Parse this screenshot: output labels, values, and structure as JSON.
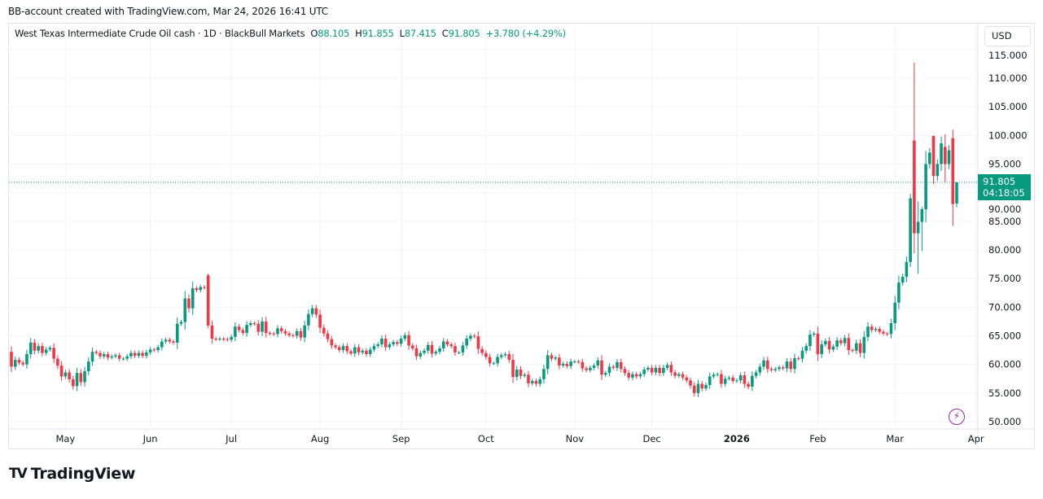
{
  "header": {
    "created_text": "BB-account created with TradingView.com, Mar 24, 2026 16:41 UTC"
  },
  "legend": {
    "symbol": "West Texas Intermediate Crude Oil cash · 1D · BlackBull Markets",
    "o_label": "O",
    "o_value": "88.105",
    "h_label": "H",
    "h_value": "91.855",
    "l_label": "L",
    "l_value": "87.415",
    "c_label": "C",
    "c_value": "91.805",
    "change": "+3.780 (+4.29%)"
  },
  "currency_button": "USD",
  "last_price": {
    "value": "91.805",
    "countdown": "04:18:05"
  },
  "logo_text": "TradingView",
  "colors": {
    "up": "#089981",
    "down": "#F23645",
    "grid": "#f0f3fa",
    "alert": "#9c27b0"
  },
  "chart_data": {
    "type": "candlestick",
    "title": "West Texas Intermediate Crude Oil cash · 1D · BlackBull Markets",
    "ylim": [
      50,
      115
    ],
    "yticks": [
      "50.000",
      "55.000",
      "60.000",
      "65.000",
      "70.000",
      "75.000",
      "80.000",
      "85.000",
      "90.000",
      "95.000",
      "100.000",
      "105.000",
      "110.000",
      "115.000"
    ],
    "x_labels": [
      {
        "label": "May",
        "at_index": 14
      },
      {
        "label": "Jun",
        "at_index": 36
      },
      {
        "label": "Jul",
        "at_index": 57
      },
      {
        "label": "Aug",
        "at_index": 80
      },
      {
        "label": "Sep",
        "at_index": 101
      },
      {
        "label": "Oct",
        "at_index": 123
      },
      {
        "label": "Nov",
        "at_index": 146
      },
      {
        "label": "Dec",
        "at_index": 166
      },
      {
        "label": "2026",
        "at_index": 188,
        "bold": true
      },
      {
        "label": "Feb",
        "at_index": 209
      },
      {
        "label": "Mar",
        "at_index": 229
      },
      {
        "label": "Apr",
        "at_index": 250
      }
    ],
    "first_open": 62.2,
    "closes": [
      59.6,
      60.8,
      60.3,
      60.0,
      61.8,
      63.8,
      62.4,
      63.2,
      62.0,
      62.6,
      62.9,
      61.0,
      59.8,
      57.9,
      58.6,
      57.4,
      56.2,
      58.5,
      56.9,
      58.8,
      60.5,
      62.2,
      62.0,
      61.4,
      61.8,
      61.2,
      61.4,
      61.6,
      61.0,
      61.0,
      61.4,
      62.0,
      61.5,
      62.0,
      61.5,
      62.1,
      62.6,
      62.5,
      63.0,
      64.0,
      64.3,
      64.0,
      63.8,
      67.1,
      67.4,
      71.5,
      69.8,
      73.3,
      73.0,
      73.5,
      73.4,
      66.8,
      64.5,
      64.4,
      64.5,
      64.4,
      64.3,
      64.8,
      66.6,
      66.0,
      65.5,
      66.9,
      67.2,
      67.1,
      65.7,
      67.5,
      65.5,
      65.4,
      65.3,
      66.3,
      65.8,
      65.4,
      65.1,
      65.0,
      65.8,
      64.7,
      66.8,
      68.8,
      69.8,
      68.7,
      66.4,
      65.4,
      64.4,
      63.3,
      63.0,
      62.5,
      63.2,
      62.3,
      61.9,
      63.0,
      62.1,
      62.4,
      61.8,
      62.6,
      63.2,
      63.5,
      64.5,
      63.0,
      63.5,
      63.9,
      63.6,
      64.5,
      65.1,
      63.3,
      62.8,
      61.4,
      62.0,
      62.4,
      63.4,
      61.9,
      62.2,
      62.8,
      64.0,
      63.5,
      63.2,
      62.1,
      62.1,
      63.3,
      64.5,
      65.0,
      64.9,
      62.7,
      62.0,
      61.3,
      60.2,
      60.2,
      61.3,
      61.6,
      61.8,
      60.8,
      57.8,
      59.1,
      58.0,
      58.2,
      56.7,
      57.1,
      56.6,
      57.4,
      59.2,
      61.6,
      61.0,
      61.2,
      59.8,
      60.1,
      59.7,
      60.5,
      60.5,
      60.4,
      59.3,
      59.0,
      59.4,
      59.8,
      60.7,
      58.2,
      58.5,
      59.6,
      59.4,
      60.4,
      59.2,
      58.5,
      57.7,
      58.3,
      57.9,
      58.3,
      59.1,
      59.4,
      58.6,
      59.4,
      58.5,
      59.4,
      59.9,
      58.6,
      58.0,
      58.3,
      57.7,
      57.2,
      56.3,
      55.0,
      56.6,
      55.8,
      56.4,
      57.9,
      58.2,
      58.3,
      56.6,
      57.5,
      57.7,
      57.1,
      57.2,
      58.1,
      56.6,
      56.1,
      58.0,
      58.6,
      59.6,
      60.7,
      59.2,
      59.0,
      59.2,
      59.5,
      59.3,
      60.5,
      59.2,
      61.1,
      61.0,
      62.4,
      63.2,
      65.2,
      65.4,
      61.8,
      63.5,
      64.1,
      62.6,
      63.1,
      64.2,
      63.7,
      64.6,
      62.5,
      62.4,
      63.7,
      62.0,
      64.8,
      66.6,
      66.0,
      66.2,
      65.7,
      65.4,
      65.3,
      67.2,
      70.8,
      74.3,
      75.3,
      77.9,
      89.0,
      82.9,
      84.9,
      87.1,
      95.0,
      97.0,
      92.9,
      95.0,
      98.6,
      95.0,
      97.4,
      88.0,
      91.805
    ],
    "overrides": [
      {
        "index": 51,
        "open": 75.55,
        "high": 75.9,
        "low": 66.3
      },
      {
        "index": 233,
        "open": 77.9,
        "high": 89.8,
        "low": 77.0
      },
      {
        "index": 234,
        "open": 99.1,
        "high": 112.7,
        "low": 79.4
      },
      {
        "index": 235,
        "open": 82.9,
        "high": 88.5,
        "low": 75.8
      },
      {
        "index": 236,
        "open": 84.9,
        "high": 87.5,
        "low": 79.8
      },
      {
        "index": 239,
        "open": 99.9,
        "high": 99.9,
        "low": 91.5
      },
      {
        "index": 242,
        "open": 98.0,
        "high": 100.2,
        "low": 91.8
      },
      {
        "index": 244,
        "open": 99.5,
        "high": 101.0,
        "low": 84.2
      },
      {
        "index": 245,
        "open": 88.105,
        "high": 91.855,
        "low": 87.415
      }
    ],
    "last_price": 91.805
  }
}
